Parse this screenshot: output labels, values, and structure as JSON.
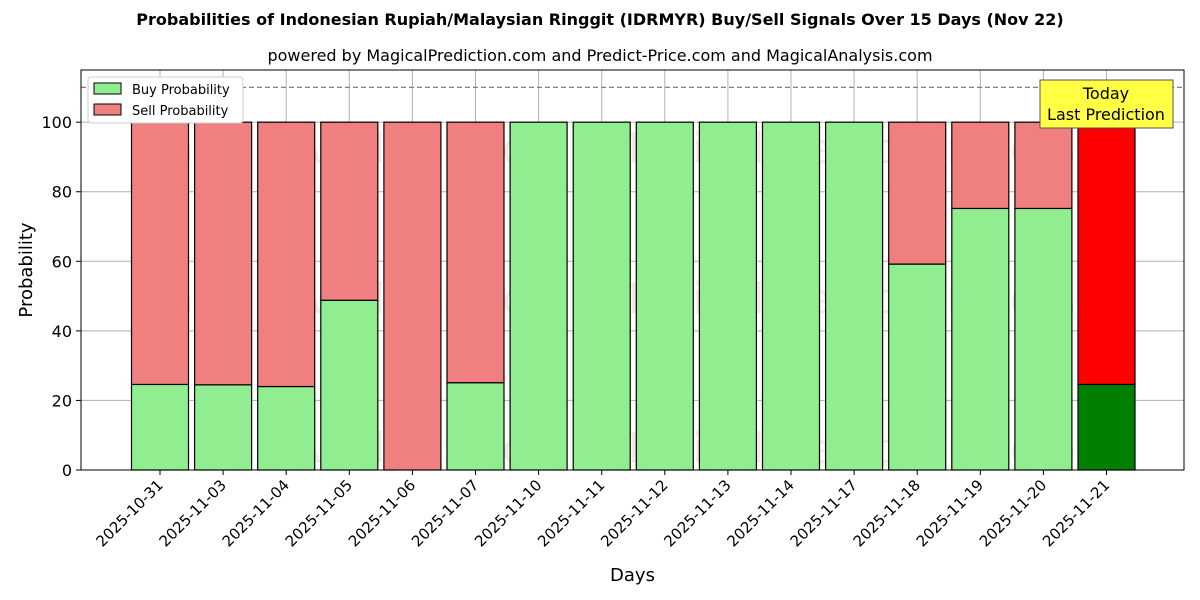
{
  "chart_data": {
    "type": "bar",
    "stacked": true,
    "title": "Probabilities of Indonesian Rupiah/Malaysian Ringgit (IDRMYR) Buy/Sell Signals Over 15 Days (Nov 22)",
    "subtitle": "powered by MagicalPrediction.com and Predict-Price.com and MagicalAnalysis.com",
    "xlabel": "Days",
    "ylabel": "Probability",
    "ylim": [
      0,
      115
    ],
    "yticks": [
      0,
      20,
      40,
      60,
      80,
      100
    ],
    "grid": true,
    "legend_position": "upper left",
    "categories": [
      "2025-10-31",
      "2025-11-03",
      "2025-11-04",
      "2025-11-05",
      "2025-11-06",
      "2025-11-07",
      "2025-11-10",
      "2025-11-11",
      "2025-11-12",
      "2025-11-13",
      "2025-11-14",
      "2025-11-17",
      "2025-11-18",
      "2025-11-19",
      "2025-11-20",
      "2025-11-21"
    ],
    "series": [
      {
        "name": "Buy Probability",
        "color": "#90EE90",
        "values": [
          24.6,
          24.5,
          24.0,
          48.8,
          0,
          25.1,
          100,
          100,
          100,
          100,
          100,
          100,
          59.2,
          75.2,
          75.2,
          24.6
        ]
      },
      {
        "name": "Sell Probability",
        "color": "#F08080",
        "values": [
          75.4,
          75.5,
          76.0,
          51.2,
          100,
          74.9,
          0,
          0,
          0,
          0,
          0,
          0,
          40.8,
          24.8,
          24.8,
          75.4
        ]
      }
    ],
    "highlight_last": {
      "buy_color": "#008000",
      "sell_color": "#FF0000"
    },
    "reference_line": {
      "y": 110,
      "style": "dashed"
    },
    "annotation": {
      "line1": "Today",
      "line2": "Last Prediction"
    },
    "watermarks": [
      "MagicalAnalysis.com",
      "MagicalPrediction.com"
    ]
  }
}
